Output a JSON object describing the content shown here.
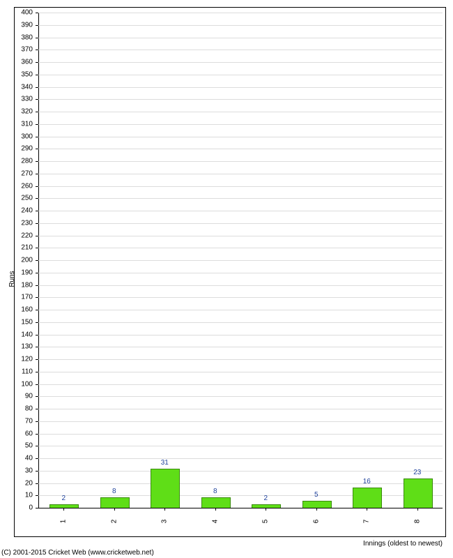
{
  "chart": {
    "type": "bar",
    "ylabel": "Runs",
    "xlabel": "Innings (oldest to newest)",
    "ylim": [
      0,
      400
    ],
    "ytick_step": 10,
    "grid_color": "#dcdcdc",
    "background_color": "#ffffff",
    "axis_color": "#000000",
    "label_fontsize": 10,
    "title_fontsize": 10,
    "bar_color": "#5fde17",
    "bar_border_color": "#3a8a0e",
    "value_label_color": "#20429c",
    "bar_width_ratio": 0.55,
    "categories": [
      "1",
      "2",
      "3",
      "4",
      "5",
      "6",
      "7",
      "8"
    ],
    "values": [
      2,
      8,
      31,
      8,
      2,
      5,
      16,
      23
    ]
  },
  "footer": {
    "copyright": "(C) 2001-2015 Cricket Web (www.cricketweb.net)"
  }
}
